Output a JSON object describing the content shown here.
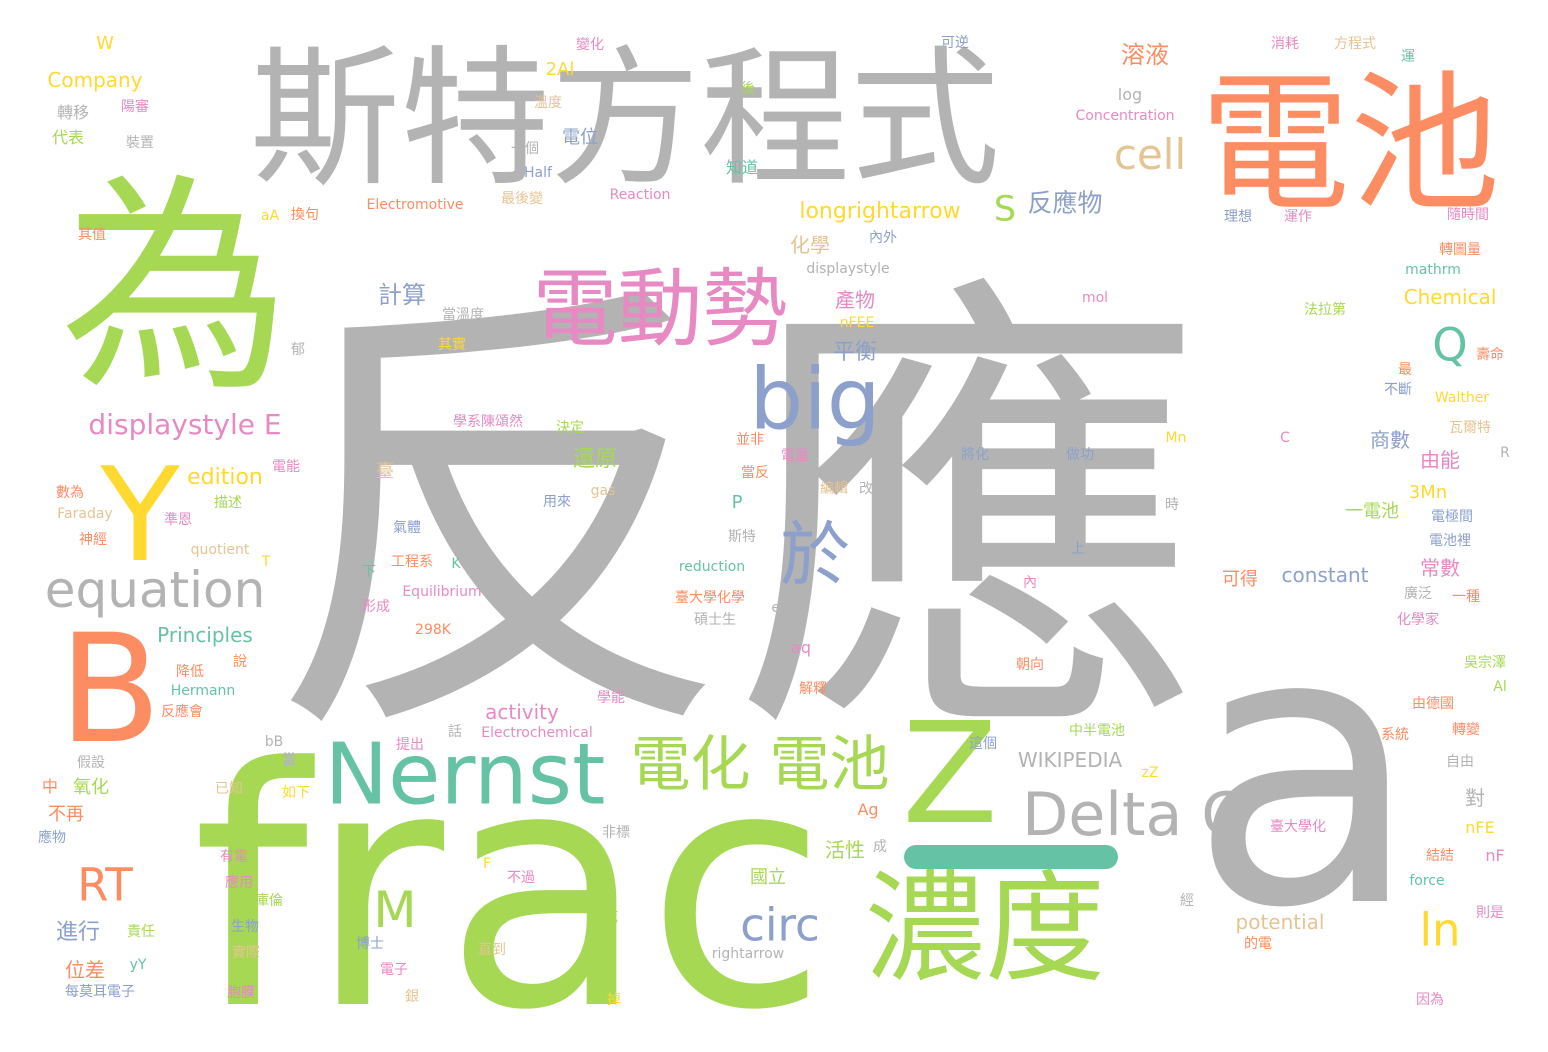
{
  "colors": {
    "gray": "#b3b3b3",
    "green": "#a6d854",
    "orange": "#fc8d62",
    "teal": "#66c2a5",
    "blue": "#8da0cb",
    "pink": "#e78ac3",
    "yellow": "#ffd92f",
    "tan": "#e5c494"
  },
  "words": [
    {
      "text": "反應",
      "color": "gray",
      "size": 470
    },
    {
      "text": "frac",
      "color": "green",
      "size": 330
    },
    {
      "text": "a",
      "color": "gray",
      "size": 380
    },
    {
      "text": "斯特方程式",
      "color": "gray",
      "size": 150
    },
    {
      "text": "電池",
      "color": "orange",
      "size": 150
    },
    {
      "text": "為",
      "color": "green",
      "size": 230
    },
    {
      "text": "電動勢",
      "color": "pink",
      "size": 85
    },
    {
      "text": "big",
      "color": "blue",
      "size": 85
    },
    {
      "text": "B",
      "color": "orange",
      "size": 150
    },
    {
      "text": "Y",
      "color": "yellow",
      "size": 130
    },
    {
      "text": "Nernst",
      "color": "teal",
      "size": 85
    },
    {
      "text": "Z",
      "color": "green",
      "size": 140
    },
    {
      "text": "濃度",
      "color": "green",
      "size": 120
    },
    {
      "text": "電化 電池",
      "color": "green",
      "size": 60
    },
    {
      "text": "Delta G",
      "color": "gray",
      "size": 60
    },
    {
      "text": "equation",
      "color": "gray",
      "size": 50
    },
    {
      "text": "於",
      "color": "blue",
      "size": 70
    },
    {
      "text": "circ",
      "color": "blue",
      "size": 45
    },
    {
      "text": "M",
      "color": "green",
      "size": 50
    },
    {
      "text": "RT",
      "color": "orange",
      "size": 45
    },
    {
      "text": "ln",
      "color": "yellow",
      "size": 45
    },
    {
      "text": "cell",
      "color": "tan",
      "size": 42
    },
    {
      "text": "Q",
      "color": "teal",
      "size": 45
    },
    {
      "text": "S",
      "color": "green",
      "size": 35
    },
    {
      "text": "longrightarrow",
      "color": "yellow",
      "size": 22
    },
    {
      "text": "反應物",
      "color": "blue",
      "size": 25
    },
    {
      "text": "displaystyle E",
      "color": "pink",
      "size": 28
    },
    {
      "text": "溶液",
      "color": "orange",
      "size": 24
    },
    {
      "text": "計算",
      "color": "blue",
      "size": 24
    },
    {
      "text": "edition",
      "color": "yellow",
      "size": 22
    },
    {
      "text": "Principles",
      "color": "teal",
      "size": 20
    },
    {
      "text": "activity",
      "color": "pink",
      "size": 20
    },
    {
      "text": "WIKIPEDIA",
      "color": "gray",
      "size": 20
    },
    {
      "text": "constant",
      "color": "blue",
      "size": 20
    },
    {
      "text": "potential",
      "color": "tan",
      "size": 20
    },
    {
      "text": "Chemical",
      "color": "yellow",
      "size": 20
    },
    {
      "text": "還原",
      "color": "green",
      "size": 22
    },
    {
      "text": "平衡",
      "color": "blue",
      "size": 22
    },
    {
      "text": "活性",
      "color": "green",
      "size": 20
    },
    {
      "text": "國立",
      "color": "green",
      "size": 18
    },
    {
      "text": "化學",
      "color": "tan",
      "size": 20
    },
    {
      "text": "產物",
      "color": "pink",
      "size": 20
    },
    {
      "text": "商數",
      "color": "blue",
      "size": 20
    },
    {
      "text": "一電池",
      "color": "green",
      "size": 18
    },
    {
      "text": "常數",
      "color": "pink",
      "size": 20
    },
    {
      "text": "由能",
      "color": "pink",
      "size": 20
    },
    {
      "text": "進行",
      "color": "blue",
      "size": 22
    },
    {
      "text": "位差",
      "color": "orange",
      "size": 20
    },
    {
      "text": "可得",
      "color": "orange",
      "size": 18
    },
    {
      "text": "3Mn",
      "color": "yellow",
      "size": 18
    },
    {
      "text": "Company",
      "color": "yellow",
      "size": 20
    },
    {
      "text": "W",
      "color": "yellow",
      "size": 18
    },
    {
      "text": "log",
      "color": "gray",
      "size": 16
    },
    {
      "text": "Concentration",
      "color": "pink",
      "size": 14
    },
    {
      "text": "Reaction",
      "color": "pink",
      "size": 14
    },
    {
      "text": "Electromotive",
      "color": "orange",
      "size": 14
    },
    {
      "text": "Equilibrium",
      "color": "pink",
      "size": 14
    },
    {
      "text": "Electrochemical",
      "color": "pink",
      "size": 14
    },
    {
      "text": "Hermann",
      "color": "teal",
      "size": 14
    },
    {
      "text": "reduction",
      "color": "teal",
      "size": 14
    },
    {
      "text": "rightarrow",
      "color": "gray",
      "size": 14
    },
    {
      "text": "quotient",
      "color": "tan",
      "size": 14
    },
    {
      "text": "Faraday",
      "color": "tan",
      "size": 14
    },
    {
      "text": "displaystyle",
      "color": "gray",
      "size": 14
    },
    {
      "text": "mathrm",
      "color": "teal",
      "size": 14
    },
    {
      "text": "Walther",
      "color": "yellow",
      "size": 14
    },
    {
      "text": "force",
      "color": "teal",
      "size": 14
    },
    {
      "text": "2Al",
      "color": "yellow",
      "size": 18
    },
    {
      "text": "電位",
      "color": "blue",
      "size": 18
    },
    {
      "text": "轉移",
      "color": "gray",
      "size": 16
    },
    {
      "text": "代表",
      "color": "green",
      "size": 16
    },
    {
      "text": "陽審",
      "color": "pink",
      "size": 14
    },
    {
      "text": "裝置",
      "color": "gray",
      "size": 14
    },
    {
      "text": "溫度",
      "color": "tan",
      "size": 14
    },
    {
      "text": "一個",
      "color": "gray",
      "size": 14
    },
    {
      "text": "Half",
      "color": "blue",
      "size": 14
    },
    {
      "text": "知道",
      "color": "teal",
      "size": 16
    },
    {
      "text": "最後變",
      "color": "tan",
      "size": 14
    },
    {
      "text": "換句",
      "color": "orange",
      "size": 14
    },
    {
      "text": "aA",
      "color": "yellow",
      "size": 14
    },
    {
      "text": "其值",
      "color": "orange",
      "size": 14
    },
    {
      "text": "nFEE",
      "color": "yellow",
      "size": 14
    },
    {
      "text": "mol",
      "color": "pink",
      "size": 14
    },
    {
      "text": "法拉第",
      "color": "green",
      "size": 14
    },
    {
      "text": "其實",
      "color": "yellow",
      "size": 14
    },
    {
      "text": "當溫度",
      "color": "gray",
      "size": 14
    },
    {
      "text": "E",
      "color": "gray",
      "size": 16
    },
    {
      "text": "P",
      "color": "teal",
      "size": 18
    },
    {
      "text": "變化",
      "color": "pink",
      "size": 14
    },
    {
      "text": "可逆",
      "color": "blue",
      "size": 14
    },
    {
      "text": "消耗",
      "color": "pink",
      "size": 14
    },
    {
      "text": "方程式",
      "color": "tan",
      "size": 14
    },
    {
      "text": "運",
      "color": "teal",
      "size": 14
    },
    {
      "text": "後",
      "color": "green",
      "size": 14
    },
    {
      "text": "理想",
      "color": "blue",
      "size": 14
    },
    {
      "text": "運作",
      "color": "pink",
      "size": 14
    },
    {
      "text": "隨時間",
      "color": "pink",
      "size": 14
    },
    {
      "text": "內外",
      "color": "blue",
      "size": 14
    },
    {
      "text": "轉圖量",
      "color": "orange",
      "size": 14
    },
    {
      "text": "壽命",
      "color": "orange",
      "size": 14
    },
    {
      "text": "最",
      "color": "orange",
      "size": 14
    },
    {
      "text": "不斷",
      "color": "blue",
      "size": 14
    },
    {
      "text": "瓦爾特",
      "color": "tan",
      "size": 14
    },
    {
      "text": "R",
      "color": "gray",
      "size": 14
    },
    {
      "text": "電極間",
      "color": "blue",
      "size": 14
    },
    {
      "text": "電池裡",
      "color": "blue",
      "size": 14
    },
    {
      "text": "廣泛",
      "color": "gray",
      "size": 14
    },
    {
      "text": "一種",
      "color": "orange",
      "size": 14
    },
    {
      "text": "化學家",
      "color": "pink",
      "size": 14
    },
    {
      "text": "吳宗澤",
      "color": "green",
      "size": 14
    },
    {
      "text": "Al",
      "color": "green",
      "size": 14
    },
    {
      "text": "由德國",
      "color": "orange",
      "size": 14
    },
    {
      "text": "轉變",
      "color": "orange",
      "size": 14
    },
    {
      "text": "系統",
      "color": "orange",
      "size": 14
    },
    {
      "text": "自由",
      "color": "gray",
      "size": 14
    },
    {
      "text": "則是",
      "color": "pink",
      "size": 14
    },
    {
      "text": "因為",
      "color": "pink",
      "size": 14
    },
    {
      "text": "nFE",
      "color": "yellow",
      "size": 16
    },
    {
      "text": "nF",
      "color": "pink",
      "size": 16
    },
    {
      "text": "對",
      "color": "gray",
      "size": 20
    },
    {
      "text": "C",
      "color": "pink",
      "size": 14
    },
    {
      "text": "Mn",
      "color": "yellow",
      "size": 14
    },
    {
      "text": "做功",
      "color": "blue",
      "size": 14
    },
    {
      "text": "將化",
      "color": "blue",
      "size": 14
    },
    {
      "text": "時",
      "color": "gray",
      "size": 14
    },
    {
      "text": "電量",
      "color": "pink",
      "size": 14
    },
    {
      "text": "並非",
      "color": "orange",
      "size": 14
    },
    {
      "text": "當反",
      "color": "orange",
      "size": 14
    },
    {
      "text": "編輯",
      "color": "tan",
      "size": 14
    },
    {
      "text": "改變",
      "color": "gray",
      "size": 14
    },
    {
      "text": "斯特",
      "color": "gray",
      "size": 14
    },
    {
      "text": "用來",
      "color": "blue",
      "size": 14
    },
    {
      "text": "gas",
      "color": "tan",
      "size": 14
    },
    {
      "text": "決定",
      "color": "green",
      "size": 14
    },
    {
      "text": "學系陳頌然",
      "color": "pink",
      "size": 14
    },
    {
      "text": "臺",
      "color": "tan",
      "size": 18
    },
    {
      "text": "郁",
      "color": "gray",
      "size": 14
    },
    {
      "text": "電能",
      "color": "pink",
      "size": 14
    },
    {
      "text": "描述",
      "color": "green",
      "size": 14
    },
    {
      "text": "數為",
      "color": "orange",
      "size": 14
    },
    {
      "text": "準恩",
      "color": "pink",
      "size": 14
    },
    {
      "text": "神經",
      "color": "orange",
      "size": 14
    },
    {
      "text": "氣體",
      "color": "blue",
      "size": 14
    },
    {
      "text": "工程系",
      "color": "orange",
      "size": 14
    },
    {
      "text": "K",
      "color": "teal",
      "size": 14
    },
    {
      "text": "T",
      "color": "yellow",
      "size": 14
    },
    {
      "text": "下",
      "color": "teal",
      "size": 14
    },
    {
      "text": "形成",
      "color": "pink",
      "size": 14
    },
    {
      "text": "298K",
      "color": "orange",
      "size": 14
    },
    {
      "text": "臺大學化學",
      "color": "orange",
      "size": 14
    },
    {
      "text": "碩士生",
      "color": "gray",
      "size": 14
    },
    {
      "text": "emf",
      "color": "gray",
      "size": 14
    },
    {
      "text": "上",
      "color": "blue",
      "size": 14
    },
    {
      "text": "內",
      "color": "pink",
      "size": 14
    },
    {
      "text": "朝向",
      "color": "orange",
      "size": 14
    },
    {
      "text": "aq",
      "color": "pink",
      "size": 16
    },
    {
      "text": "學能",
      "color": "pink",
      "size": 14
    },
    {
      "text": "解釋",
      "color": "orange",
      "size": 14
    },
    {
      "text": "降低",
      "color": "orange",
      "size": 14
    },
    {
      "text": "說",
      "color": "orange",
      "size": 14
    },
    {
      "text": "反應會",
      "color": "orange",
      "size": 14
    },
    {
      "text": "話",
      "color": "gray",
      "size": 14
    },
    {
      "text": "提出",
      "color": "pink",
      "size": 14
    },
    {
      "text": "這個",
      "color": "blue",
      "size": 14
    },
    {
      "text": "bB",
      "color": "gray",
      "size": 14
    },
    {
      "text": "當",
      "color": "gray",
      "size": 14
    },
    {
      "text": "假設",
      "color": "gray",
      "size": 14
    },
    {
      "text": "中",
      "color": "orange",
      "size": 16
    },
    {
      "text": "氧化",
      "color": "green",
      "size": 18
    },
    {
      "text": "不再",
      "color": "orange",
      "size": 18
    },
    {
      "text": "應物",
      "color": "blue",
      "size": 14
    },
    {
      "text": "已知",
      "color": "tan",
      "size": 14
    },
    {
      "text": "如下",
      "color": "yellow",
      "size": 14
    },
    {
      "text": "中半電池",
      "color": "green",
      "size": 14
    },
    {
      "text": "zZ",
      "color": "yellow",
      "size": 14
    },
    {
      "text": "Ag",
      "color": "orange",
      "size": 16
    },
    {
      "text": "臺大學化",
      "color": "pink",
      "size": 14
    },
    {
      "text": "非標",
      "color": "gray",
      "size": 14
    },
    {
      "text": "有電",
      "color": "pink",
      "size": 14
    },
    {
      "text": "成",
      "color": "gray",
      "size": 14
    },
    {
      "text": "結結",
      "color": "orange",
      "size": 14
    },
    {
      "text": "F",
      "color": "yellow",
      "size": 14
    },
    {
      "text": "不過",
      "color": "pink",
      "size": 14
    },
    {
      "text": "應用",
      "color": "pink",
      "size": 14
    },
    {
      "text": "庫倫",
      "color": "green",
      "size": 14
    },
    {
      "text": "責任",
      "color": "green",
      "size": 14
    },
    {
      "text": "生物",
      "color": "blue",
      "size": 14
    },
    {
      "text": "實際",
      "color": "tan",
      "size": 14
    },
    {
      "text": "死",
      "color": "green",
      "size": 14
    },
    {
      "text": "博士",
      "color": "blue",
      "size": 14
    },
    {
      "text": "直到",
      "color": "tan",
      "size": 14
    },
    {
      "text": "經",
      "color": "gray",
      "size": 14
    },
    {
      "text": "的電",
      "color": "orange",
      "size": 14
    },
    {
      "text": "yY",
      "color": "teal",
      "size": 14
    },
    {
      "text": "每莫耳電子",
      "color": "blue",
      "size": 14
    },
    {
      "text": "胞膜",
      "color": "pink",
      "size": 14
    },
    {
      "text": "電子",
      "color": "pink",
      "size": 14
    },
    {
      "text": "銀",
      "color": "tan",
      "size": 14
    },
    {
      "text": "掉",
      "color": "yellow",
      "size": 14
    }
  ]
}
